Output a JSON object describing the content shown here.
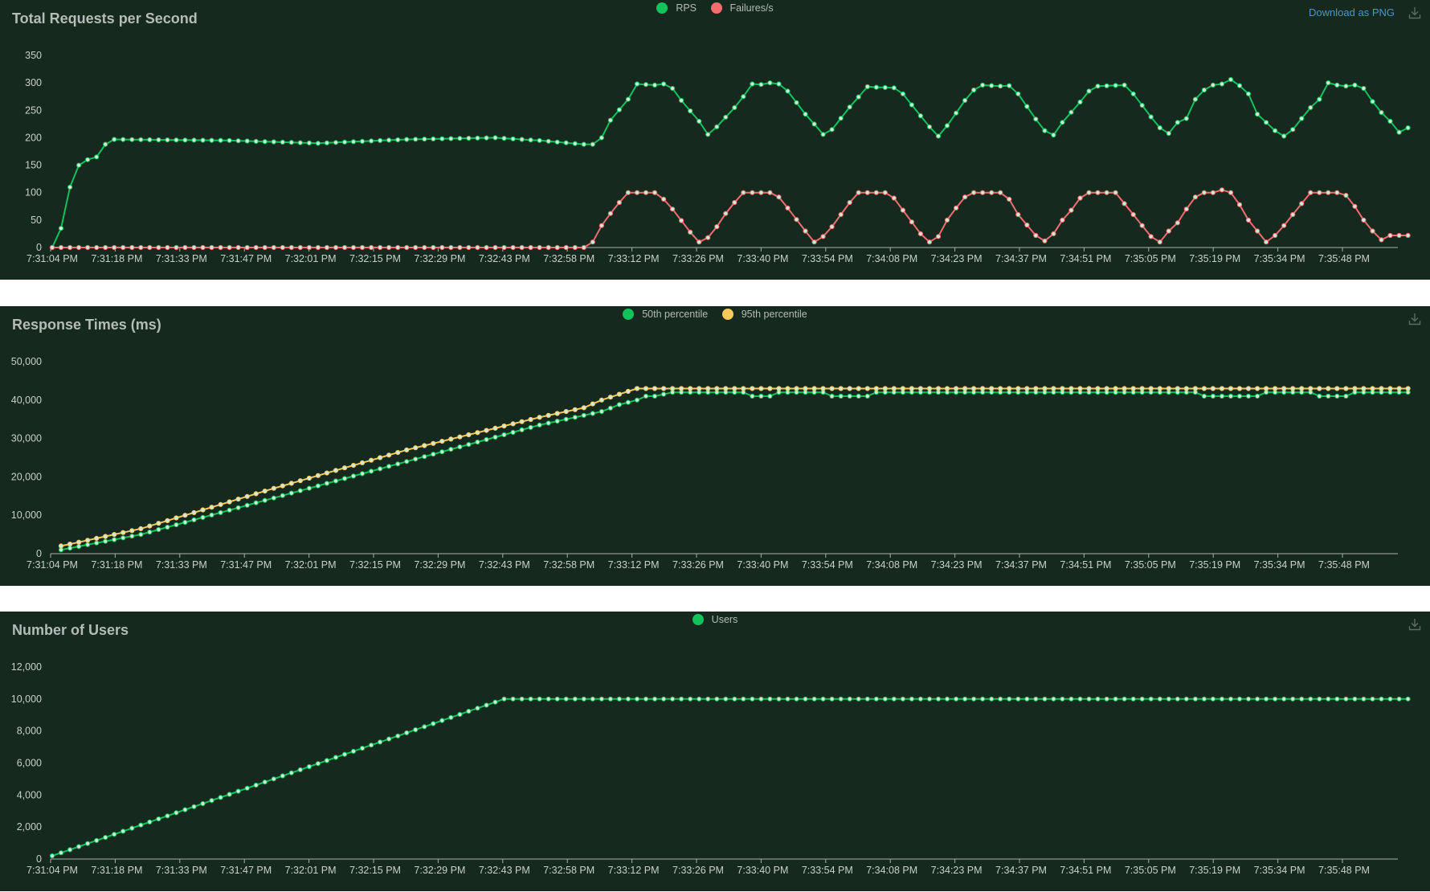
{
  "download_label": "Download as PNG",
  "colors": {
    "panel_bg": "#15291f",
    "green": "#12c35c",
    "red": "#f26e6e",
    "yellow": "#f7c85a",
    "axis": "#a9b1ad"
  },
  "x_tick_labels": [
    "7:31:04 PM",
    "7:31:18 PM",
    "7:31:33 PM",
    "7:31:47 PM",
    "7:32:01 PM",
    "7:32:15 PM",
    "7:32:29 PM",
    "7:32:43 PM",
    "7:32:58 PM",
    "7:33:12 PM",
    "7:33:26 PM",
    "7:33:40 PM",
    "7:33:54 PM",
    "7:34:08 PM",
    "7:34:23 PM",
    "7:34:37 PM",
    "7:34:51 PM",
    "7:35:05 PM",
    "7:35:19 PM",
    "7:35:34 PM",
    "7:35:48 PM"
  ],
  "chart_data": [
    {
      "type": "line",
      "title": "Total Requests per Second",
      "xlabel": "",
      "ylabel": "",
      "x_range": [
        "7:31:04 PM",
        "7:35:59 PM"
      ],
      "ylim": [
        0,
        350
      ],
      "y_ticks": [
        "0",
        "50",
        "100",
        "150",
        "200",
        "250",
        "300",
        "350"
      ],
      "y_tick_values": [
        0,
        50,
        100,
        150,
        200,
        250,
        300,
        350
      ],
      "grid": false,
      "legend_placement": "top-center",
      "series": [
        {
          "name": "RPS",
          "color": "#12c35c",
          "keypoints": [
            [
              0,
              0
            ],
            [
              1,
              35
            ],
            [
              2,
              110
            ],
            [
              3,
              150
            ],
            [
              4,
              160
            ],
            [
              5,
              165
            ],
            [
              6,
              188
            ],
            [
              7,
              197
            ],
            [
              20,
              195
            ],
            [
              30,
              190
            ],
            [
              40,
              197
            ],
            [
              50,
              200
            ],
            [
              55,
              195
            ],
            [
              60,
              188
            ],
            [
              61,
              188
            ],
            [
              62,
              200
            ],
            [
              63,
              232
            ],
            [
              65,
              270
            ],
            [
              66,
              298
            ],
            [
              68,
              296
            ],
            [
              69,
              298
            ],
            [
              70,
              290
            ],
            [
              71,
              268
            ],
            [
              73,
              230
            ],
            [
              74,
              206
            ],
            [
              75,
              220
            ],
            [
              77,
              255
            ],
            [
              78,
              275
            ],
            [
              79,
              298
            ],
            [
              80,
              297
            ],
            [
              81,
              300
            ],
            [
              82,
              298
            ],
            [
              83,
              285
            ],
            [
              85,
              243
            ],
            [
              86,
              225
            ],
            [
              87,
              206
            ],
            [
              88,
              215
            ],
            [
              90,
              256
            ],
            [
              92,
              293
            ],
            [
              93,
              292
            ],
            [
              95,
              291
            ],
            [
              96,
              280
            ],
            [
              98,
              240
            ],
            [
              99,
              220
            ],
            [
              100,
              203
            ],
            [
              101,
              222
            ],
            [
              103,
              268
            ],
            [
              104,
              287
            ],
            [
              105,
              296
            ],
            [
              107,
              294
            ],
            [
              108,
              295
            ],
            [
              109,
              280
            ],
            [
              111,
              234
            ],
            [
              112,
              213
            ],
            [
              113,
              205
            ],
            [
              114,
              228
            ],
            [
              116,
              265
            ],
            [
              117,
              285
            ],
            [
              118,
              294
            ],
            [
              121,
              296
            ],
            [
              122,
              280
            ],
            [
              124,
              238
            ],
            [
              125,
              218
            ],
            [
              126,
              208
            ],
            [
              127,
              228
            ],
            [
              128,
              235
            ],
            [
              129,
              270
            ],
            [
              130,
              287
            ],
            [
              131,
              296
            ],
            [
              132,
              298
            ],
            [
              133,
              306
            ],
            [
              134,
              295
            ],
            [
              135,
              280
            ],
            [
              136,
              243
            ],
            [
              138,
              213
            ],
            [
              139,
              203
            ],
            [
              140,
              215
            ],
            [
              142,
              255
            ],
            [
              143,
              270
            ],
            [
              144,
              300
            ],
            [
              145,
              296
            ],
            [
              146,
              294
            ],
            [
              147,
              296
            ],
            [
              148,
              290
            ],
            [
              149,
              266
            ],
            [
              150,
              246
            ],
            [
              151,
              230
            ],
            [
              152,
              210
            ],
            [
              153,
              218
            ]
          ]
        },
        {
          "name": "Failures/s",
          "color": "#f26e6e",
          "keypoints": [
            [
              0,
              0
            ],
            [
              60,
              0
            ],
            [
              61,
              10
            ],
            [
              62,
              40
            ],
            [
              63,
              62
            ],
            [
              64,
              82
            ],
            [
              65,
              100
            ],
            [
              68,
              100
            ],
            [
              69,
              88
            ],
            [
              70,
              70
            ],
            [
              72,
              28
            ],
            [
              73,
              10
            ],
            [
              74,
              18
            ],
            [
              75,
              38
            ],
            [
              76,
              62
            ],
            [
              77,
              82
            ],
            [
              78,
              100
            ],
            [
              81,
              100
            ],
            [
              82,
              92
            ],
            [
              83,
              72
            ],
            [
              85,
              30
            ],
            [
              86,
              10
            ],
            [
              87,
              20
            ],
            [
              88,
              38
            ],
            [
              89,
              60
            ],
            [
              90,
              82
            ],
            [
              91,
              100
            ],
            [
              94,
              100
            ],
            [
              95,
              90
            ],
            [
              96,
              68
            ],
            [
              98,
              25
            ],
            [
              99,
              10
            ],
            [
              100,
              20
            ],
            [
              101,
              50
            ],
            [
              102,
              72
            ],
            [
              103,
              92
            ],
            [
              104,
              100
            ],
            [
              107,
              100
            ],
            [
              108,
              88
            ],
            [
              109,
              60
            ],
            [
              111,
              22
            ],
            [
              112,
              12
            ],
            [
              113,
              25
            ],
            [
              114,
              50
            ],
            [
              115,
              68
            ],
            [
              116,
              90
            ],
            [
              117,
              100
            ],
            [
              120,
              100
            ],
            [
              121,
              80
            ],
            [
              122,
              60
            ],
            [
              124,
              20
            ],
            [
              125,
              10
            ],
            [
              126,
              30
            ],
            [
              127,
              45
            ],
            [
              128,
              70
            ],
            [
              129,
              92
            ],
            [
              130,
              100
            ],
            [
              131,
              100
            ],
            [
              132,
              105
            ],
            [
              133,
              100
            ],
            [
              134,
              78
            ],
            [
              135,
              50
            ],
            [
              136,
              30
            ],
            [
              137,
              10
            ],
            [
              138,
              22
            ],
            [
              139,
              40
            ],
            [
              140,
              60
            ],
            [
              141,
              80
            ],
            [
              142,
              100
            ],
            [
              145,
              100
            ],
            [
              146,
              95
            ],
            [
              147,
              75
            ],
            [
              148,
              50
            ],
            [
              149,
              30
            ],
            [
              150,
              14
            ],
            [
              151,
              22
            ]
          ]
        }
      ]
    },
    {
      "type": "line",
      "title": "Response Times (ms)",
      "xlabel": "",
      "ylabel": "",
      "x_range": [
        "7:31:04 PM",
        "7:35:59 PM"
      ],
      "ylim": [
        0,
        50000
      ],
      "y_ticks": [
        "0",
        "10,000",
        "20,000",
        "30,000",
        "40,000",
        "50,000"
      ],
      "y_tick_values": [
        0,
        10000,
        20000,
        30000,
        40000,
        50000
      ],
      "grid": false,
      "legend_placement": "top-center",
      "series": [
        {
          "name": "50th percentile",
          "color": "#12c35c",
          "keypoints": [
            [
              1,
              1000
            ],
            [
              10,
              5000
            ],
            [
              25,
              14500
            ],
            [
              40,
              24000
            ],
            [
              55,
              33500
            ],
            [
              60,
              36000
            ],
            [
              62,
              37000
            ],
            [
              64,
              38800
            ],
            [
              66,
              40000
            ],
            [
              67,
              41000
            ],
            [
              68,
              41000
            ],
            [
              70,
              42000
            ],
            [
              78,
              42000
            ],
            [
              79,
              41000
            ],
            [
              81,
              41000
            ],
            [
              82,
              42000
            ],
            [
              87,
              42000
            ],
            [
              88,
              41000
            ],
            [
              92,
              41000
            ],
            [
              93,
              42000
            ],
            [
              129,
              42000
            ],
            [
              130,
              41000
            ],
            [
              136,
              41000
            ],
            [
              137,
              42000
            ],
            [
              142,
              42000
            ],
            [
              143,
              41000
            ],
            [
              146,
              41000
            ],
            [
              147,
              42000
            ],
            [
              153,
              42000
            ]
          ]
        },
        {
          "name": "95th percentile",
          "color": "#f7c85a",
          "keypoints": [
            [
              1,
              2000
            ],
            [
              10,
              6500
            ],
            [
              25,
              17000
            ],
            [
              40,
              27000
            ],
            [
              55,
              35500
            ],
            [
              60,
              38000
            ],
            [
              62,
              40000
            ],
            [
              64,
              41500
            ],
            [
              66,
              43000
            ],
            [
              153,
              43000
            ]
          ]
        }
      ]
    },
    {
      "type": "line",
      "title": "Number of Users",
      "xlabel": "",
      "ylabel": "",
      "x_range": [
        "7:31:04 PM",
        "7:35:59 PM"
      ],
      "ylim": [
        0,
        12000
      ],
      "y_ticks": [
        "0",
        "2,000",
        "4,000",
        "6,000",
        "8,000",
        "10,000",
        "12,000"
      ],
      "y_tick_values": [
        0,
        2000,
        4000,
        6000,
        8000,
        10000,
        12000
      ],
      "grid": false,
      "legend_placement": "top-center",
      "series": [
        {
          "name": "Users",
          "color": "#12c35c",
          "keypoints": [
            [
              0,
              200
            ],
            [
              51,
              10000
            ],
            [
              153,
              10000
            ]
          ]
        }
      ]
    }
  ]
}
